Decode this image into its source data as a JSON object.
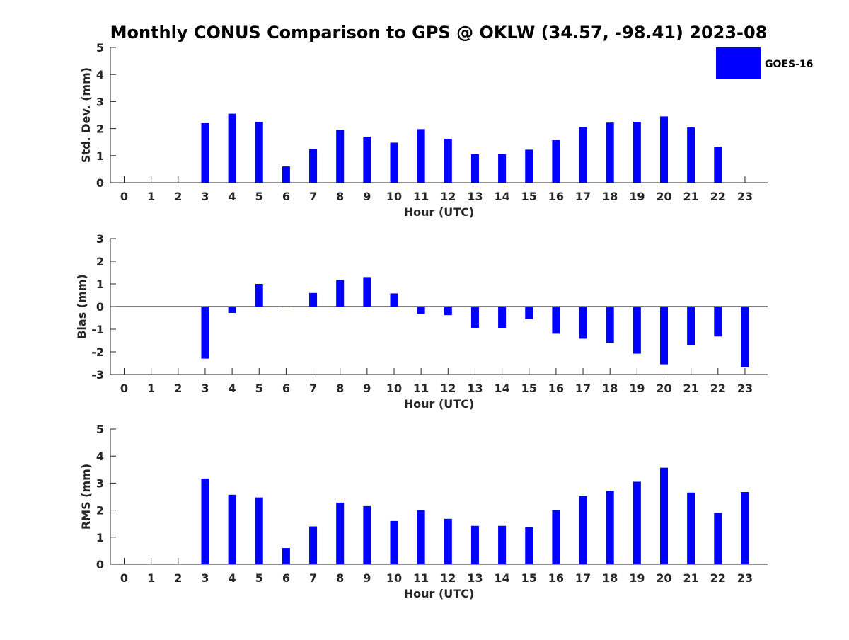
{
  "title": "Monthly CONUS Comparison to GPS @ OKLW (34.57, -98.41) 2023-08",
  "legend": {
    "label": "GOES-16",
    "color": "#0000ff"
  },
  "chart_data": [
    {
      "type": "bar",
      "name": "std-dev",
      "title": "Monthly CONUS Comparison to GPS @ OKLW (34.57, -98.41) 2023-08",
      "xlabel": "Hour (UTC)",
      "ylabel": "Std. Dev. (mm)",
      "ylim": [
        0,
        5
      ],
      "yticks": [
        "0",
        "1",
        "2",
        "3",
        "4",
        "5"
      ],
      "categories": [
        "0",
        "1",
        "2",
        "3",
        "4",
        "5",
        "6",
        "7",
        "8",
        "9",
        "10",
        "11",
        "12",
        "13",
        "14",
        "15",
        "16",
        "17",
        "18",
        "19",
        "20",
        "21",
        "22",
        "23"
      ],
      "series": [
        {
          "name": "GOES-16",
          "values": [
            null,
            null,
            null,
            2.2,
            2.55,
            2.25,
            0.6,
            1.25,
            1.95,
            1.7,
            1.48,
            1.98,
            1.62,
            1.05,
            1.05,
            1.22,
            1.57,
            2.06,
            2.22,
            2.25,
            2.45,
            2.04,
            1.33,
            null
          ]
        }
      ]
    },
    {
      "type": "bar",
      "name": "bias",
      "xlabel": "Hour (UTC)",
      "ylabel": "Bias (mm)",
      "ylim": [
        -3,
        3
      ],
      "yticks": [
        "-3",
        "-2",
        "-1",
        "0",
        "1",
        "2",
        "3"
      ],
      "categories": [
        "0",
        "1",
        "2",
        "3",
        "4",
        "5",
        "6",
        "7",
        "8",
        "9",
        "10",
        "11",
        "12",
        "13",
        "14",
        "15",
        "16",
        "17",
        "18",
        "19",
        "20",
        "21",
        "22",
        "23"
      ],
      "series": [
        {
          "name": "GOES-16",
          "values": [
            null,
            null,
            null,
            -2.3,
            -0.28,
            1.0,
            -0.03,
            0.6,
            1.18,
            1.3,
            0.58,
            -0.32,
            -0.38,
            -0.95,
            -0.95,
            -0.55,
            -1.2,
            -1.42,
            -1.6,
            -2.08,
            -2.55,
            -1.72,
            -1.32,
            -2.68
          ]
        }
      ]
    },
    {
      "type": "bar",
      "name": "rms",
      "xlabel": "Hour (UTC)",
      "ylabel": "RMS (mm)",
      "ylim": [
        0,
        5
      ],
      "yticks": [
        "0",
        "1",
        "2",
        "3",
        "4",
        "5"
      ],
      "categories": [
        "0",
        "1",
        "2",
        "3",
        "4",
        "5",
        "6",
        "7",
        "8",
        "9",
        "10",
        "11",
        "12",
        "13",
        "14",
        "15",
        "16",
        "17",
        "18",
        "19",
        "20",
        "21",
        "22",
        "23"
      ],
      "series": [
        {
          "name": "GOES-16",
          "values": [
            null,
            null,
            null,
            3.17,
            2.57,
            2.47,
            0.6,
            1.4,
            2.28,
            2.15,
            1.6,
            2.0,
            1.68,
            1.42,
            1.42,
            1.37,
            2.0,
            2.52,
            2.72,
            3.05,
            3.57,
            2.65,
            1.9,
            2.67
          ]
        }
      ]
    }
  ]
}
